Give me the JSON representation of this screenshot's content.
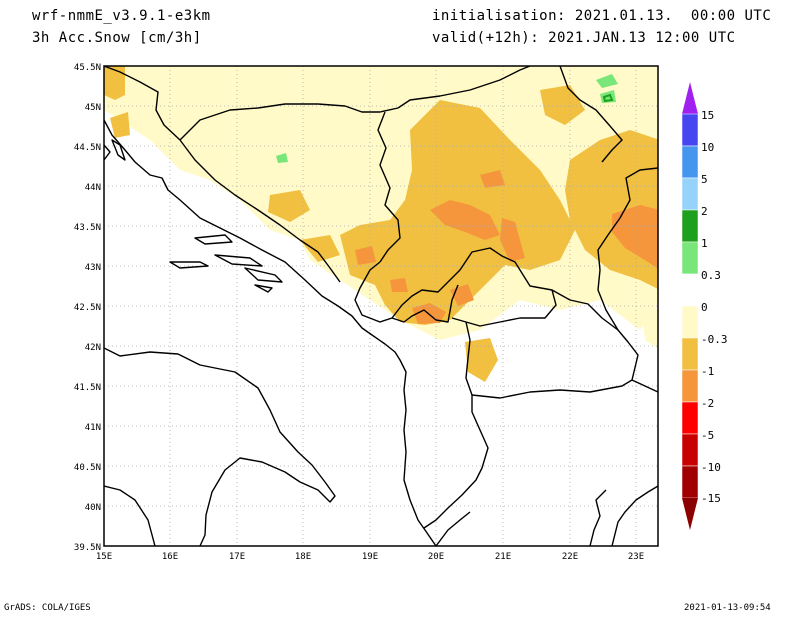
{
  "header": {
    "model": "wrf-nmmE_v3.9.1-e3km",
    "variable": "3h Acc.Snow [cm/3h]",
    "init": "initialisation: 2021.01.13.  00:00 UTC",
    "valid": "valid(+12h): 2021.JAN.13 12:00 UTC"
  },
  "footer": {
    "left": "GrADS: COLA/IGES",
    "right": "2021-01-13-09:54"
  },
  "map": {
    "lat_labels": [
      "45.5N",
      "45N",
      "44.5N",
      "44N",
      "43.5N",
      "43N",
      "42.5N",
      "42N",
      "41.5N",
      "41N",
      "40.5N",
      "40N",
      "39.5N"
    ],
    "lon_labels": [
      "15E",
      "16E",
      "17E",
      "18E",
      "19E",
      "20E",
      "21E",
      "22E",
      "23E"
    ],
    "colors": {
      "pale": "#fffac8",
      "yellow": "#f2c040",
      "orange": "#f5963c",
      "lightgreen": "#78e678",
      "green": "#1ea01e"
    }
  },
  "legend": {
    "labels": [
      "15",
      "10",
      "5",
      "2",
      "1",
      "0.3",
      "0",
      "-0.3",
      "-1",
      "-2",
      "-5",
      "-10",
      "-15"
    ],
    "colors": [
      "#4646f0",
      "#4696f0",
      "#96d2fa",
      "#1ea01e",
      "#78e678",
      "#ffffff",
      "#fffac8",
      "#f2c040",
      "#f5963c",
      "#ff0000",
      "#c80000",
      "#a00000"
    ],
    "top_color": "#a020f0",
    "bottom_color": "#8b0000"
  }
}
